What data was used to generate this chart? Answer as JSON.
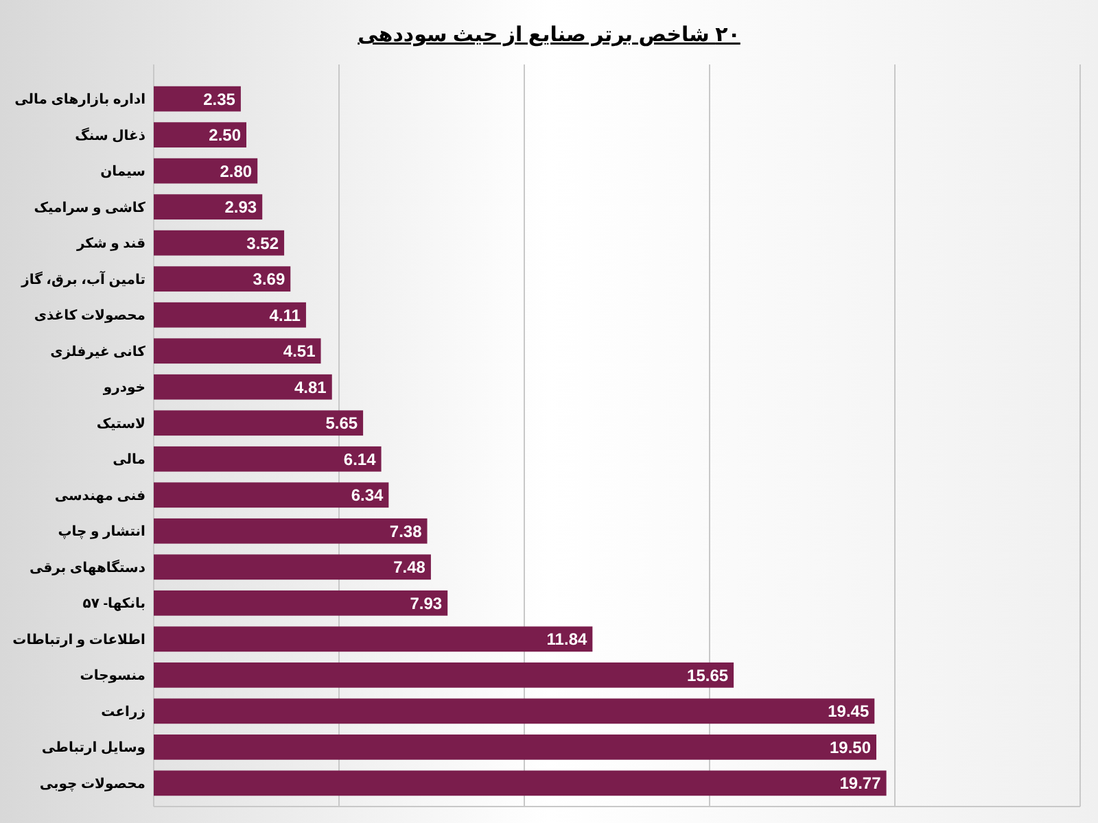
{
  "chart_data": {
    "type": "bar",
    "orientation": "horizontal",
    "title": "۲۰ شاخص برتر صنایع از حیث سوددهی",
    "categories": [
      "اداره بازارهای مالی",
      "ذغال سنگ",
      "سیمان",
      "کاشی و سرامیک",
      "قند و شکر",
      "تامین آب، برق، گاز",
      "محصولات کاغذی",
      "کانی غیرفلزی",
      "خودرو",
      "لاستیک",
      "مالی",
      "فنی مهندسی",
      "انتشار و چاپ",
      "دستگاههای برقی",
      "بانکها- ۵۷",
      "اطلاعات و ارتباطات",
      "منسوجات",
      "زراعت",
      "وسایل ارتباطی",
      "محصولات چوبی"
    ],
    "values": [
      2.35,
      2.5,
      2.8,
      2.93,
      3.52,
      3.69,
      4.11,
      4.51,
      4.81,
      5.65,
      6.14,
      6.34,
      7.38,
      7.48,
      7.93,
      11.84,
      15.65,
      19.45,
      19.5,
      19.77
    ],
    "color": "#7a1d4c",
    "value_labels": [
      "2.35",
      "2.50",
      "2.80",
      "2.93",
      "3.52",
      "3.69",
      "4.11",
      "4.51",
      "4.81",
      "5.65",
      "6.14",
      "6.34",
      "7.38",
      "7.48",
      "7.93",
      "11.84",
      "15.65",
      "19.45",
      "19.50",
      "19.77"
    ],
    "xlim": [
      0,
      25
    ],
    "xticks": [
      {
        "value": 0,
        "label": null
      },
      {
        "value": 5,
        "label": null
      },
      {
        "value": 10,
        "label": null
      },
      {
        "value": 15,
        "label": null
      },
      {
        "value": 20,
        "label": null
      },
      {
        "value": 25,
        "label": null
      }
    ],
    "grid": "x",
    "tick_labels": "y"
  }
}
